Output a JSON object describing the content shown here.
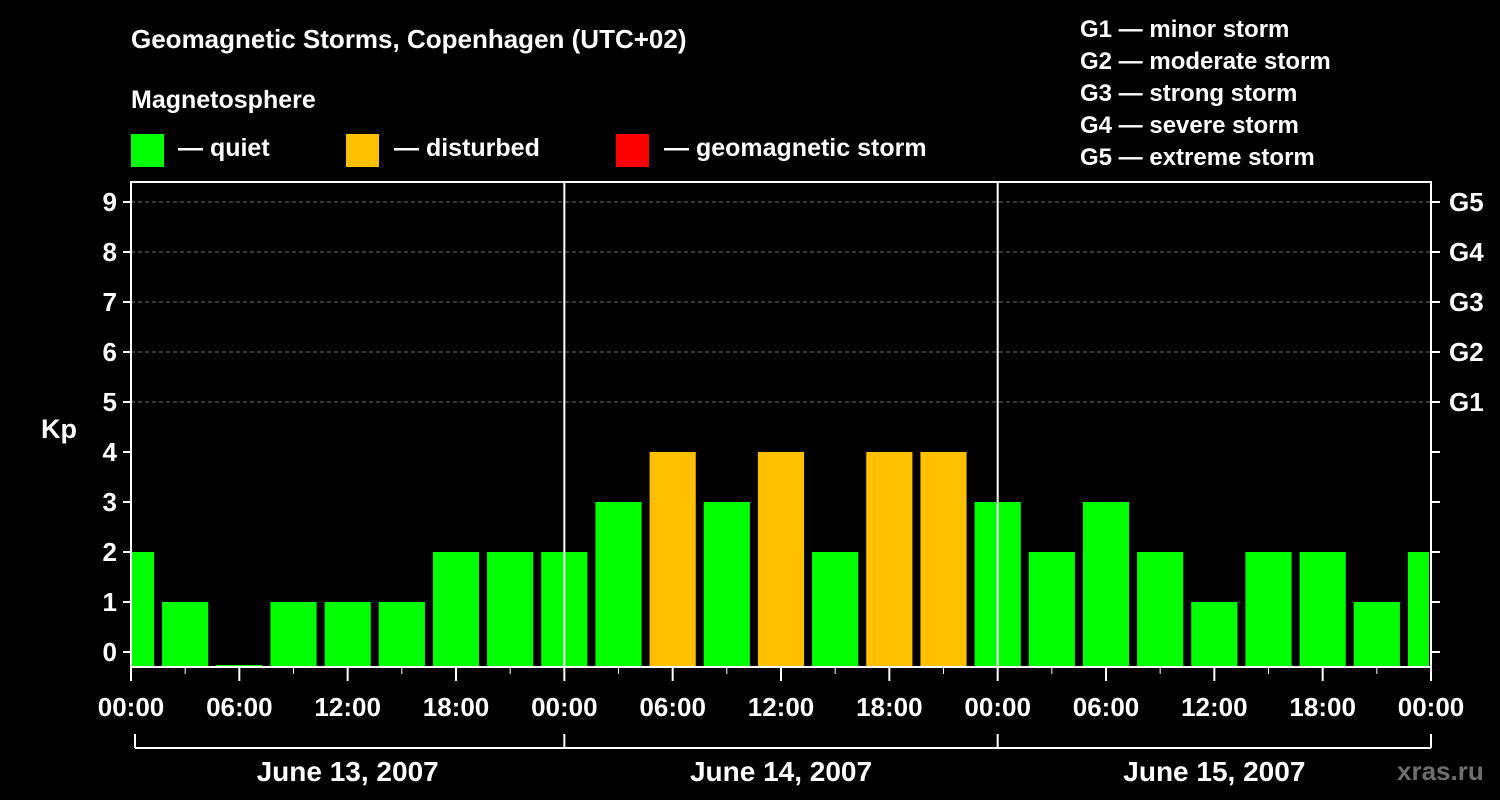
{
  "title": "Geomagnetic Storms, Copenhagen (UTC+02)",
  "legend": {
    "heading": "Magnetosphere",
    "items": [
      {
        "label": "— quiet",
        "color": "#00ff00"
      },
      {
        "label": "— disturbed",
        "color": "#ffc000"
      },
      {
        "label": "— geomagnetic storm",
        "color": "#ff0000"
      }
    ]
  },
  "storm_scale": [
    "G1 — minor storm",
    "G2 — moderate storm",
    "G3 — strong storm",
    "G4 — severe storm",
    "G5 — extreme storm"
  ],
  "watermark": "xras.ru",
  "chart_data": {
    "type": "bar",
    "ylabel": "Kp",
    "ylim": [
      0,
      9
    ],
    "y_ticks": [
      "0",
      "1",
      "2",
      "3",
      "4",
      "5",
      "6",
      "7",
      "8",
      "9"
    ],
    "right_ticks": [
      {
        "kp": 5,
        "label": "G1"
      },
      {
        "kp": 6,
        "label": "G2"
      },
      {
        "kp": 7,
        "label": "G3"
      },
      {
        "kp": 8,
        "label": "G4"
      },
      {
        "kp": 9,
        "label": "G5"
      }
    ],
    "x_tick_labels": [
      "00:00",
      "06:00",
      "12:00",
      "18:00",
      "00:00",
      "06:00",
      "12:00",
      "18:00",
      "00:00",
      "06:00",
      "12:00",
      "18:00",
      "00:00"
    ],
    "days": [
      "June 13, 2007",
      "June 14, 2007",
      "June 15, 2007"
    ],
    "interval_hours": 3,
    "values": [
      2,
      1,
      0,
      1,
      1,
      1,
      2,
      2,
      2,
      3,
      4,
      3,
      4,
      2,
      4,
      4,
      3,
      2,
      3,
      2,
      1,
      2,
      2,
      1,
      2
    ],
    "disturbed_from_kp": 4,
    "storm_from_kp": 5,
    "grid": "dashed horizontal lines at Kp 5-9"
  }
}
